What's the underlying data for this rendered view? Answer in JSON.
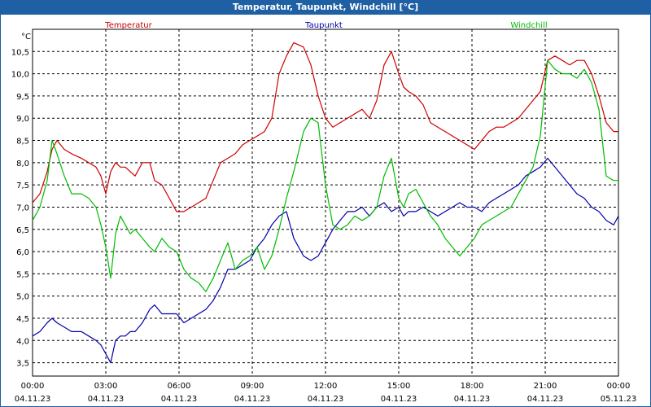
{
  "window": {
    "title": "Temperatur, Taupunkt, Windchill [°C]"
  },
  "colors": {
    "title_bar": "#1f5fa3",
    "temperatur": "#cc0000",
    "taupunkt": "#0000aa",
    "windchill": "#00bb00"
  },
  "chart_data": {
    "type": "line",
    "title": "Temperatur, Taupunkt, Windchill [°C]",
    "ylabel": "°C",
    "ylim": [
      3.2,
      11.0
    ],
    "y_ticks": [
      "3,5",
      "4,0",
      "4,5",
      "5,0",
      "5,5",
      "6,0",
      "6,5",
      "7,0",
      "7,5",
      "8,0",
      "8,5",
      "9,0",
      "9,5",
      "10,0",
      "10,5"
    ],
    "y_tick_values": [
      3.5,
      4.0,
      4.5,
      5.0,
      5.5,
      6.0,
      6.5,
      7.0,
      7.5,
      8.0,
      8.5,
      9.0,
      9.5,
      10.0,
      10.5
    ],
    "xlim_hours": [
      0,
      24
    ],
    "x_ticks": [
      {
        "time": "00:00",
        "date": "04.11.23"
      },
      {
        "time": "03:00",
        "date": "04.11.23"
      },
      {
        "time": "06:00",
        "date": "04.11.23"
      },
      {
        "time": "09:00",
        "date": "04.11.23"
      },
      {
        "time": "12:00",
        "date": "04.11.23"
      },
      {
        "time": "15:00",
        "date": "04.11.23"
      },
      {
        "time": "18:00",
        "date": "04.11.23"
      },
      {
        "time": "21:00",
        "date": "04.11.23"
      },
      {
        "time": "00:00",
        "date": "05.11.23"
      }
    ],
    "legend": [
      "Temperatur",
      "Taupunkt",
      "Windchill"
    ],
    "grid": true,
    "series": [
      {
        "name": "Temperatur",
        "key": "temperatur",
        "x": [
          0,
          0.3,
          0.6,
          0.8,
          1.0,
          1.3,
          1.6,
          2.0,
          2.3,
          2.6,
          2.8,
          3.0,
          3.2,
          3.4,
          3.6,
          3.8,
          4.0,
          4.2,
          4.5,
          4.8,
          5.0,
          5.3,
          5.6,
          5.9,
          6.2,
          6.5,
          6.8,
          7.1,
          7.4,
          7.7,
          8.0,
          8.3,
          8.6,
          8.9,
          9.2,
          9.5,
          9.8,
          10.1,
          10.4,
          10.7,
          11.1,
          11.4,
          11.7,
          12.0,
          12.3,
          12.6,
          12.9,
          13.2,
          13.5,
          13.8,
          14.1,
          14.4,
          14.7,
          15.0,
          15.2,
          15.4,
          15.7,
          16.0,
          16.3,
          16.6,
          16.9,
          17.2,
          17.5,
          17.8,
          18.1,
          18.4,
          18.7,
          19.0,
          19.3,
          19.6,
          19.9,
          20.2,
          20.5,
          20.8,
          21.1,
          21.4,
          21.7,
          22.0,
          22.3,
          22.6,
          22.9,
          23.2,
          23.5,
          23.8,
          24.0
        ],
        "values": [
          7.1,
          7.3,
          7.8,
          8.3,
          8.5,
          8.3,
          8.2,
          8.1,
          8.0,
          7.9,
          7.7,
          7.3,
          7.8,
          8.0,
          7.9,
          7.9,
          7.8,
          7.7,
          8.0,
          8.0,
          7.6,
          7.5,
          7.2,
          6.9,
          6.9,
          7.0,
          7.1,
          7.2,
          7.6,
          8.0,
          8.1,
          8.2,
          8.4,
          8.5,
          8.6,
          8.7,
          9.0,
          10.0,
          10.4,
          10.7,
          10.6,
          10.2,
          9.5,
          9.0,
          8.8,
          8.9,
          9.0,
          9.1,
          9.2,
          9.0,
          9.4,
          10.2,
          10.5,
          10.0,
          9.7,
          9.6,
          9.5,
          9.3,
          8.9,
          8.8,
          8.7,
          8.6,
          8.5,
          8.4,
          8.3,
          8.5,
          8.7,
          8.8,
          8.8,
          8.9,
          9.0,
          9.2,
          9.4,
          9.6,
          10.3,
          10.4,
          10.3,
          10.2,
          10.3,
          10.3,
          10.0,
          9.5,
          8.9,
          8.7,
          8.7
        ]
      },
      {
        "name": "Taupunkt",
        "key": "taupunkt",
        "x": [
          0,
          0.3,
          0.6,
          0.8,
          1.0,
          1.3,
          1.6,
          2.0,
          2.3,
          2.6,
          2.8,
          3.0,
          3.2,
          3.4,
          3.6,
          3.8,
          4.0,
          4.2,
          4.5,
          4.8,
          5.0,
          5.3,
          5.6,
          5.9,
          6.2,
          6.5,
          6.8,
          7.1,
          7.4,
          7.7,
          8.0,
          8.3,
          8.6,
          8.9,
          9.2,
          9.5,
          9.8,
          10.1,
          10.4,
          10.7,
          11.1,
          11.4,
          11.7,
          12.0,
          12.3,
          12.6,
          12.9,
          13.2,
          13.5,
          13.8,
          14.1,
          14.4,
          14.7,
          15.0,
          15.2,
          15.4,
          15.7,
          16.0,
          16.3,
          16.6,
          16.9,
          17.2,
          17.5,
          17.8,
          18.1,
          18.4,
          18.7,
          19.0,
          19.3,
          19.6,
          19.9,
          20.2,
          20.5,
          20.8,
          21.1,
          21.4,
          21.7,
          22.0,
          22.3,
          22.6,
          22.9,
          23.2,
          23.5,
          23.8,
          24.0
        ],
        "values": [
          4.1,
          4.2,
          4.4,
          4.5,
          4.4,
          4.3,
          4.2,
          4.2,
          4.1,
          4.0,
          3.9,
          3.7,
          3.5,
          4.0,
          4.1,
          4.1,
          4.2,
          4.2,
          4.4,
          4.7,
          4.8,
          4.6,
          4.6,
          4.6,
          4.4,
          4.5,
          4.6,
          4.7,
          4.9,
          5.2,
          5.6,
          5.6,
          5.7,
          5.8,
          6.1,
          6.3,
          6.6,
          6.8,
          6.9,
          6.3,
          5.9,
          5.8,
          5.9,
          6.2,
          6.5,
          6.7,
          6.9,
          6.9,
          7.0,
          6.8,
          7.0,
          7.1,
          6.9,
          7.0,
          6.8,
          6.9,
          6.9,
          7.0,
          6.9,
          6.8,
          6.9,
          7.0,
          7.1,
          7.0,
          7.0,
          6.9,
          7.1,
          7.2,
          7.3,
          7.4,
          7.5,
          7.7,
          7.8,
          7.9,
          8.1,
          7.9,
          7.7,
          7.5,
          7.3,
          7.2,
          7.0,
          6.9,
          6.7,
          6.6,
          6.8
        ]
      },
      {
        "name": "Windchill",
        "key": "windchill",
        "x": [
          0,
          0.3,
          0.6,
          0.8,
          1.0,
          1.3,
          1.6,
          2.0,
          2.3,
          2.6,
          2.8,
          3.0,
          3.2,
          3.4,
          3.6,
          3.8,
          4.0,
          4.2,
          4.5,
          4.8,
          5.0,
          5.3,
          5.6,
          5.9,
          6.2,
          6.5,
          6.8,
          7.1,
          7.4,
          7.7,
          8.0,
          8.3,
          8.6,
          8.9,
          9.2,
          9.5,
          9.8,
          10.1,
          10.4,
          10.7,
          11.1,
          11.4,
          11.7,
          12.0,
          12.3,
          12.6,
          12.9,
          13.2,
          13.5,
          13.8,
          14.1,
          14.4,
          14.7,
          15.0,
          15.2,
          15.4,
          15.7,
          16.0,
          16.3,
          16.6,
          16.9,
          17.2,
          17.5,
          17.8,
          18.1,
          18.4,
          18.7,
          19.0,
          19.3,
          19.6,
          19.9,
          20.2,
          20.5,
          20.8,
          21.1,
          21.4,
          21.7,
          22.0,
          22.3,
          22.6,
          22.9,
          23.2,
          23.5,
          23.8,
          24.0
        ],
        "values": [
          6.7,
          7.0,
          7.6,
          8.5,
          8.2,
          7.7,
          7.3,
          7.3,
          7.2,
          7.0,
          6.6,
          6.1,
          5.4,
          6.4,
          6.8,
          6.6,
          6.4,
          6.5,
          6.3,
          6.1,
          6.0,
          6.3,
          6.1,
          6.0,
          5.6,
          5.4,
          5.3,
          5.1,
          5.4,
          5.8,
          6.2,
          5.6,
          5.8,
          5.9,
          6.1,
          5.6,
          5.9,
          6.5,
          7.2,
          7.8,
          8.7,
          9.0,
          8.9,
          7.5,
          6.6,
          6.5,
          6.6,
          6.8,
          6.7,
          6.8,
          7.0,
          7.7,
          8.1,
          7.2,
          7.0,
          7.3,
          7.4,
          7.1,
          6.8,
          6.6,
          6.3,
          6.1,
          5.9,
          6.1,
          6.3,
          6.6,
          6.7,
          6.8,
          6.9,
          7.0,
          7.3,
          7.6,
          7.9,
          8.6,
          10.3,
          10.1,
          10.0,
          10.0,
          9.9,
          10.1,
          9.8,
          9.2,
          7.7,
          7.6,
          7.6
        ]
      }
    ]
  }
}
